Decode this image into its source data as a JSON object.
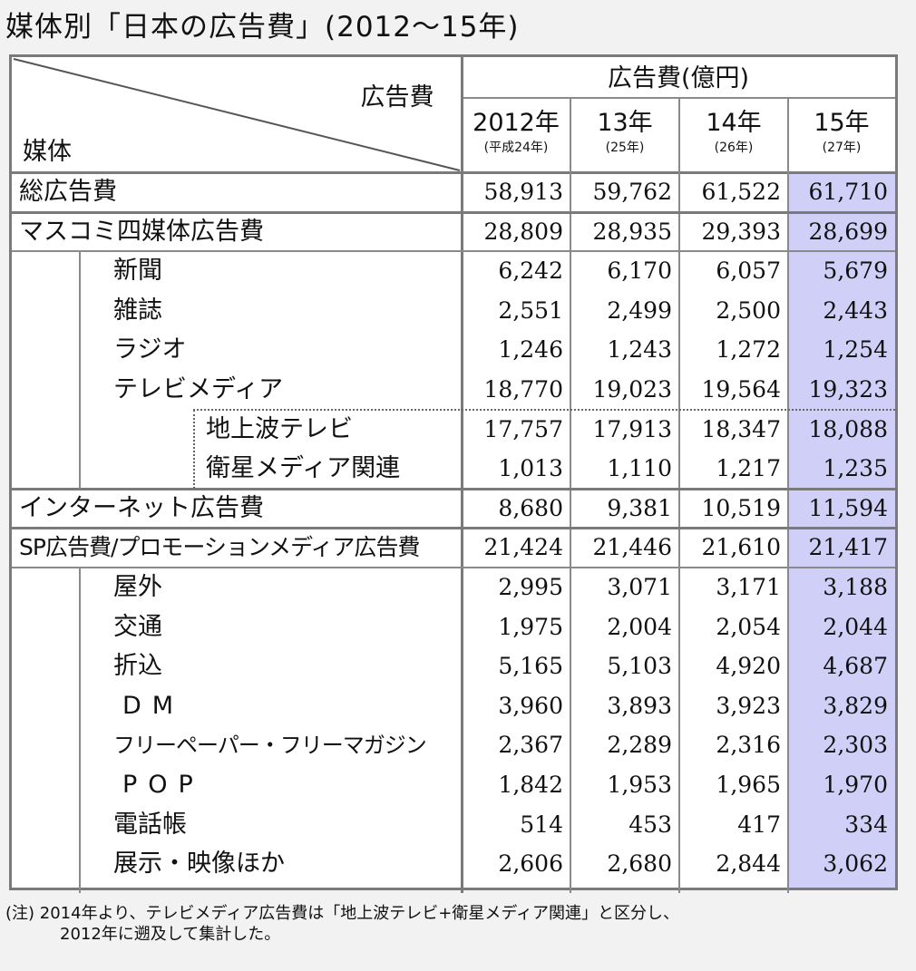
{
  "title": "媒体別「日本の広告費」(2012〜15年)",
  "header": {
    "corner_top": "広告費",
    "corner_bottom": "媒体",
    "group": "広告費(億円)",
    "years": [
      {
        "label": "2012年",
        "sub": "(平成24年)"
      },
      {
        "label": "13年",
        "sub": "(25年)"
      },
      {
        "label": "14年",
        "sub": "(26年)"
      },
      {
        "label": "15年",
        "sub": "(27年)"
      }
    ]
  },
  "rows": [
    {
      "label": "総広告費",
      "values": [
        "58,913",
        "59,762",
        "61,522",
        "61,710"
      ]
    },
    {
      "label": "マスコミ四媒体広告費",
      "values": [
        "28,809",
        "28,935",
        "29,393",
        "28,699"
      ]
    },
    {
      "label": "新聞",
      "values": [
        "6,242",
        "6,170",
        "6,057",
        "5,679"
      ]
    },
    {
      "label": "雑誌",
      "values": [
        "2,551",
        "2,499",
        "2,500",
        "2,443"
      ]
    },
    {
      "label": "ラジオ",
      "values": [
        "1,246",
        "1,243",
        "1,272",
        "1,254"
      ]
    },
    {
      "label": "テレビメディア",
      "values": [
        "18,770",
        "19,023",
        "19,564",
        "19,323"
      ]
    },
    {
      "label": "地上波テレビ",
      "values": [
        "17,757",
        "17,913",
        "18,347",
        "18,088"
      ]
    },
    {
      "label": "衛星メディア関連",
      "values": [
        "1,013",
        "1,110",
        "1,217",
        "1,235"
      ]
    },
    {
      "label": "インターネット広告費",
      "values": [
        "8,680",
        "9,381",
        "10,519",
        "11,594"
      ]
    },
    {
      "label": "SP広告費/プロモーションメディア広告費",
      "values": [
        "21,424",
        "21,446",
        "21,610",
        "21,417"
      ]
    },
    {
      "label": "屋外",
      "values": [
        "2,995",
        "3,071",
        "3,171",
        "3,188"
      ]
    },
    {
      "label": "交通",
      "values": [
        "1,975",
        "2,004",
        "2,054",
        "2,044"
      ]
    },
    {
      "label": "折込",
      "values": [
        "5,165",
        "5,103",
        "4,920",
        "4,687"
      ]
    },
    {
      "label": "DM",
      "values": [
        "3,960",
        "3,893",
        "3,923",
        "3,829"
      ]
    },
    {
      "label": "フリーペーパー・フリーマガジン",
      "values": [
        "2,367",
        "2,289",
        "2,316",
        "2,303"
      ]
    },
    {
      "label": "POP",
      "values": [
        "1,842",
        "1,953",
        "1,965",
        "1,970"
      ]
    },
    {
      "label": "電話帳",
      "values": [
        "514",
        "453",
        "417",
        "334"
      ]
    },
    {
      "label": "展示・映像ほか",
      "values": [
        "2,606",
        "2,680",
        "2,844",
        "3,062"
      ]
    }
  ],
  "note_line1": "(注) 2014年より、テレビメディア広告費は「地上波テレビ+衛星メディア関連」と区分し、",
  "note_line2": "2012年に遡及して集計した。",
  "colors": {
    "highlight_column": "#cfcff7",
    "border": "#7a7a7a"
  }
}
